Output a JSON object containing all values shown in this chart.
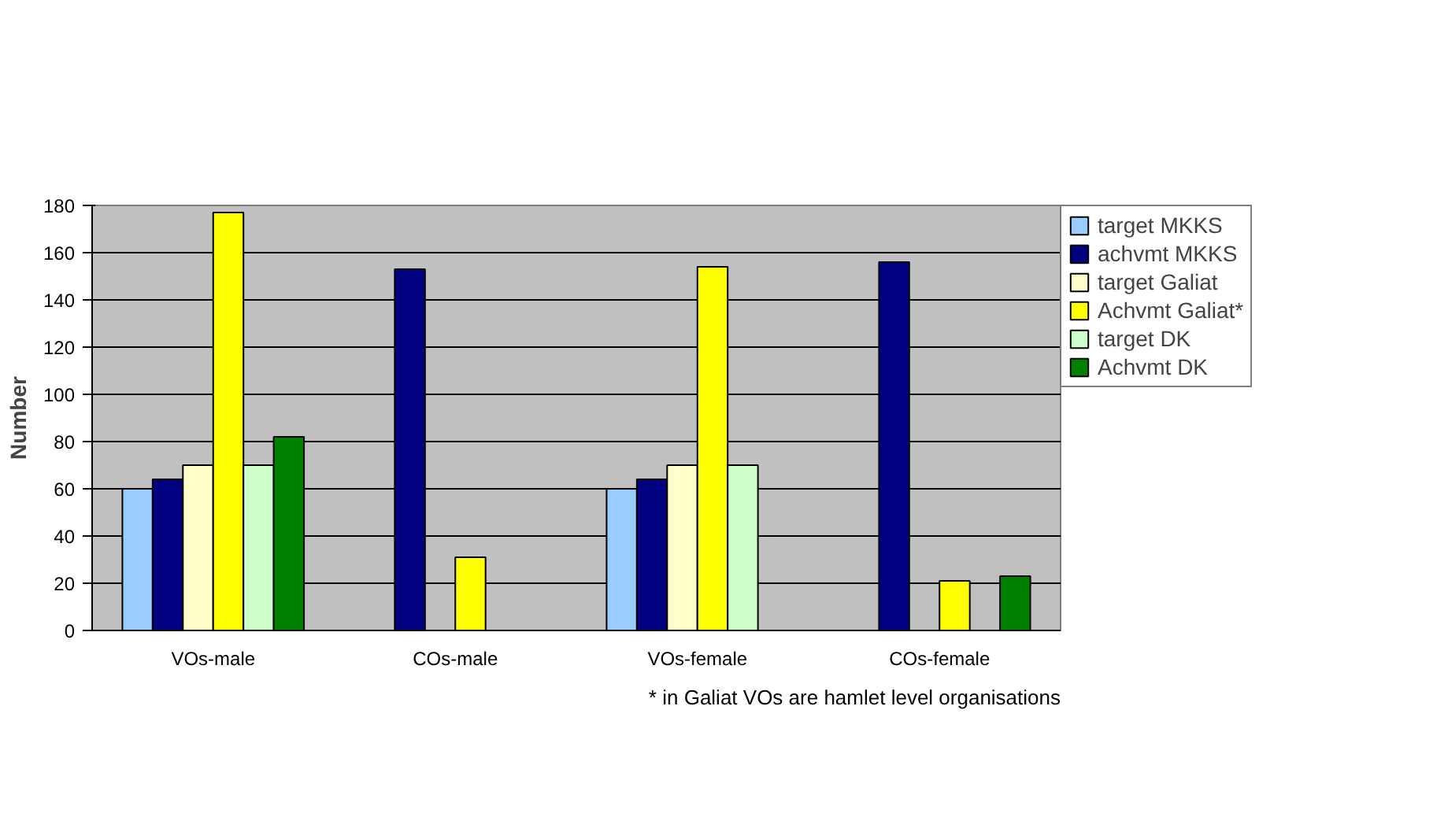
{
  "chart_data": {
    "type": "bar",
    "ylabel": "Number",
    "categories": [
      "VOs-male",
      "COs-male",
      "VOs-female",
      "COs-female"
    ],
    "series": [
      {
        "name": "target MKKS",
        "color": "#99ccff",
        "values": [
          60,
          null,
          60,
          null
        ]
      },
      {
        "name": "achvmt MKKS",
        "color": "#000080",
        "values": [
          64,
          153,
          64,
          156
        ]
      },
      {
        "name": "target Galiat",
        "color": "#ffffcc",
        "values": [
          70,
          null,
          70,
          null
        ]
      },
      {
        "name": "Achvmt Galiat*",
        "color": "#ffff00",
        "values": [
          177,
          31,
          154,
          21
        ]
      },
      {
        "name": "target DK",
        "color": "#ccffcc",
        "values": [
          70,
          null,
          70,
          null
        ]
      },
      {
        "name": "Achvmt DK",
        "color": "#008000",
        "values": [
          82,
          null,
          null,
          23
        ]
      }
    ],
    "ylim": [
      0,
      180
    ],
    "yticks": [
      0,
      20,
      40,
      60,
      80,
      100,
      120,
      140,
      160,
      180
    ],
    "grid": "y",
    "legend": "right",
    "annotations": [
      "* in Galiat VOs are hamlet level organisations"
    ]
  }
}
